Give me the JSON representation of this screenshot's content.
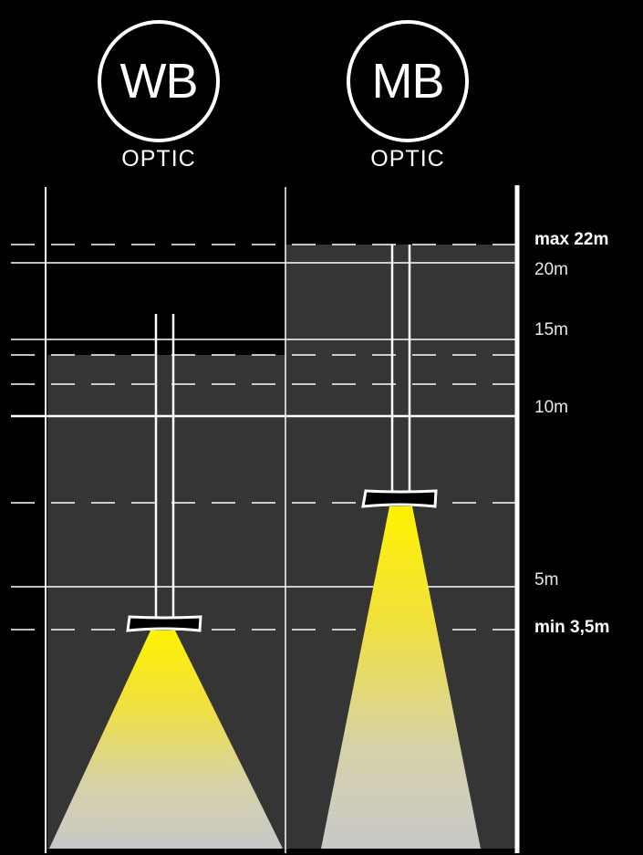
{
  "header": {
    "left": {
      "badge": "WB",
      "label": "OPTIC"
    },
    "right": {
      "badge": "MB",
      "label": "OPTIC"
    }
  },
  "height_labels": {
    "max": "max 22m",
    "h20": "20m",
    "h15": "15m",
    "h10": "10m",
    "h5": "5m",
    "min": "min 3,5m"
  },
  "colors": {
    "background": "#000000",
    "zone_fill": "#353535",
    "line": "#ffffff",
    "beam_top": "#fff200",
    "beam_bottom": "#c8c8c8"
  }
}
